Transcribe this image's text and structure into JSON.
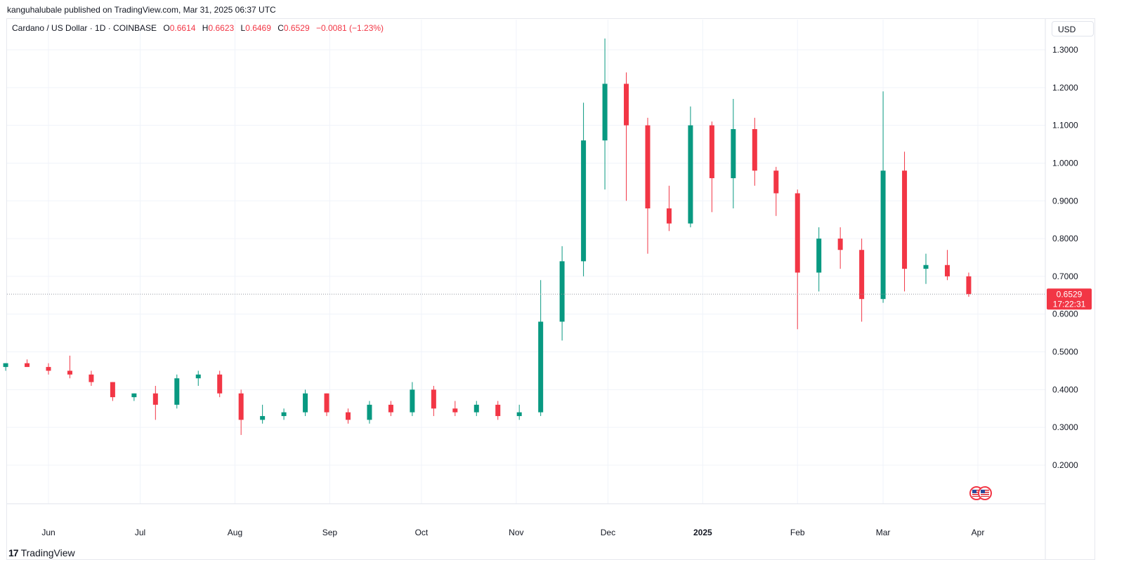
{
  "header": {
    "published": "kanguhalubale published on TradingView.com, Mar 31, 2025 06:37 UTC"
  },
  "legend": {
    "symbol": "Cardano / US Dollar · 1D · COINBASE",
    "o_label": "O",
    "o_value": "0.6614",
    "h_label": "H",
    "h_value": "0.6623",
    "l_label": "L",
    "l_value": "0.6469",
    "c_label": "C",
    "c_value": "0.6529",
    "change": "−0.0081 (−1.23%)"
  },
  "currency_button": "USD",
  "footer": {
    "brand": "TradingView",
    "logo": "tradingview-logo-icon"
  },
  "price_tag": {
    "price": "0.6529",
    "countdown": "17:22:31",
    "color": "#f23645"
  },
  "colors": {
    "up": "#089981",
    "down": "#f23645",
    "grid": "#f0f3fa",
    "axis_text": "#131722"
  },
  "event_marker": {
    "icon": "us-flag-icon",
    "count": 2
  },
  "chart_data": {
    "type": "candlestick",
    "title": "Cardano / US Dollar · 1D · COINBASE",
    "xlabel": "",
    "ylabel": "",
    "ylim": [
      0.1,
      1.33
    ],
    "y_ticks": [
      "1.3000",
      "1.2000",
      "1.1000",
      "1.0000",
      "0.9000",
      "0.8000",
      "0.7000",
      "0.6000",
      "0.5000",
      "0.4000",
      "0.3000",
      "0.2000"
    ],
    "x_ticks": [
      {
        "label": "Jun",
        "date": "2024-06-01"
      },
      {
        "label": "Jul",
        "date": "2024-07-01"
      },
      {
        "label": "Aug",
        "date": "2024-08-01"
      },
      {
        "label": "Sep",
        "date": "2024-09-01"
      },
      {
        "label": "Oct",
        "date": "2024-10-01"
      },
      {
        "label": "Nov",
        "date": "2024-11-01"
      },
      {
        "label": "Dec",
        "date": "2024-12-01"
      },
      {
        "label": "2025",
        "date": "2025-01-01",
        "bold": true
      },
      {
        "label": "Feb",
        "date": "2025-02-01"
      },
      {
        "label": "Mar",
        "date": "2025-03-01"
      },
      {
        "label": "Apr",
        "date": "2025-04-01"
      }
    ],
    "grid": true,
    "last_price": 0.6529,
    "candles": [
      {
        "date": "2024-05-18",
        "o": 0.46,
        "h": 0.47,
        "l": 0.45,
        "c": 0.47
      },
      {
        "date": "2024-05-25",
        "o": 0.47,
        "h": 0.48,
        "l": 0.46,
        "c": 0.46
      },
      {
        "date": "2024-06-01",
        "o": 0.46,
        "h": 0.47,
        "l": 0.44,
        "c": 0.45
      },
      {
        "date": "2024-06-08",
        "o": 0.45,
        "h": 0.49,
        "l": 0.43,
        "c": 0.44
      },
      {
        "date": "2024-06-15",
        "o": 0.44,
        "h": 0.45,
        "l": 0.41,
        "c": 0.42
      },
      {
        "date": "2024-06-22",
        "o": 0.42,
        "h": 0.42,
        "l": 0.37,
        "c": 0.38
      },
      {
        "date": "2024-06-29",
        "o": 0.38,
        "h": 0.39,
        "l": 0.37,
        "c": 0.39
      },
      {
        "date": "2024-07-06",
        "o": 0.39,
        "h": 0.41,
        "l": 0.32,
        "c": 0.36
      },
      {
        "date": "2024-07-13",
        "o": 0.36,
        "h": 0.44,
        "l": 0.35,
        "c": 0.43
      },
      {
        "date": "2024-07-20",
        "o": 0.43,
        "h": 0.45,
        "l": 0.41,
        "c": 0.44
      },
      {
        "date": "2024-07-27",
        "o": 0.44,
        "h": 0.45,
        "l": 0.38,
        "c": 0.39
      },
      {
        "date": "2024-08-03",
        "o": 0.39,
        "h": 0.4,
        "l": 0.28,
        "c": 0.32
      },
      {
        "date": "2024-08-10",
        "o": 0.32,
        "h": 0.36,
        "l": 0.31,
        "c": 0.33
      },
      {
        "date": "2024-08-17",
        "o": 0.33,
        "h": 0.35,
        "l": 0.32,
        "c": 0.34
      },
      {
        "date": "2024-08-24",
        "o": 0.34,
        "h": 0.4,
        "l": 0.33,
        "c": 0.39
      },
      {
        "date": "2024-08-31",
        "o": 0.39,
        "h": 0.39,
        "l": 0.33,
        "c": 0.34
      },
      {
        "date": "2024-09-07",
        "o": 0.34,
        "h": 0.35,
        "l": 0.31,
        "c": 0.32
      },
      {
        "date": "2024-09-14",
        "o": 0.32,
        "h": 0.37,
        "l": 0.31,
        "c": 0.36
      },
      {
        "date": "2024-09-21",
        "o": 0.36,
        "h": 0.37,
        "l": 0.33,
        "c": 0.34
      },
      {
        "date": "2024-09-28",
        "o": 0.34,
        "h": 0.42,
        "l": 0.33,
        "c": 0.4
      },
      {
        "date": "2024-10-05",
        "o": 0.4,
        "h": 0.41,
        "l": 0.33,
        "c": 0.35
      },
      {
        "date": "2024-10-12",
        "o": 0.35,
        "h": 0.37,
        "l": 0.33,
        "c": 0.34
      },
      {
        "date": "2024-10-19",
        "o": 0.34,
        "h": 0.37,
        "l": 0.33,
        "c": 0.36
      },
      {
        "date": "2024-10-26",
        "o": 0.36,
        "h": 0.37,
        "l": 0.32,
        "c": 0.33
      },
      {
        "date": "2024-11-02",
        "o": 0.33,
        "h": 0.36,
        "l": 0.32,
        "c": 0.34
      },
      {
        "date": "2024-11-09",
        "o": 0.34,
        "h": 0.69,
        "l": 0.33,
        "c": 0.58
      },
      {
        "date": "2024-11-16",
        "o": 0.58,
        "h": 0.78,
        "l": 0.53,
        "c": 0.74
      },
      {
        "date": "2024-11-23",
        "o": 0.74,
        "h": 1.16,
        "l": 0.7,
        "c": 1.06
      },
      {
        "date": "2024-11-30",
        "o": 1.06,
        "h": 1.33,
        "l": 0.93,
        "c": 1.21
      },
      {
        "date": "2024-12-07",
        "o": 1.21,
        "h": 1.24,
        "l": 0.9,
        "c": 1.1
      },
      {
        "date": "2024-12-14",
        "o": 1.1,
        "h": 1.12,
        "l": 0.76,
        "c": 0.88
      },
      {
        "date": "2024-12-21",
        "o": 0.88,
        "h": 0.94,
        "l": 0.82,
        "c": 0.84
      },
      {
        "date": "2024-12-28",
        "o": 0.84,
        "h": 1.15,
        "l": 0.83,
        "c": 1.1
      },
      {
        "date": "2025-01-04",
        "o": 1.1,
        "h": 1.11,
        "l": 0.87,
        "c": 0.96
      },
      {
        "date": "2025-01-11",
        "o": 0.96,
        "h": 1.17,
        "l": 0.88,
        "c": 1.09
      },
      {
        "date": "2025-01-18",
        "o": 1.09,
        "h": 1.12,
        "l": 0.94,
        "c": 0.98
      },
      {
        "date": "2025-01-25",
        "o": 0.98,
        "h": 0.99,
        "l": 0.86,
        "c": 0.92
      },
      {
        "date": "2025-02-01",
        "o": 0.92,
        "h": 0.93,
        "l": 0.56,
        "c": 0.71
      },
      {
        "date": "2025-02-08",
        "o": 0.71,
        "h": 0.83,
        "l": 0.66,
        "c": 0.8
      },
      {
        "date": "2025-02-15",
        "o": 0.8,
        "h": 0.83,
        "l": 0.72,
        "c": 0.77
      },
      {
        "date": "2025-02-22",
        "o": 0.77,
        "h": 0.8,
        "l": 0.58,
        "c": 0.64
      },
      {
        "date": "2025-03-01",
        "o": 0.64,
        "h": 1.19,
        "l": 0.63,
        "c": 0.98
      },
      {
        "date": "2025-03-08",
        "o": 0.98,
        "h": 1.03,
        "l": 0.66,
        "c": 0.72
      },
      {
        "date": "2025-03-15",
        "o": 0.72,
        "h": 0.76,
        "l": 0.68,
        "c": 0.73
      },
      {
        "date": "2025-03-22",
        "o": 0.73,
        "h": 0.77,
        "l": 0.69,
        "c": 0.7
      },
      {
        "date": "2025-03-29",
        "o": 0.7,
        "h": 0.71,
        "l": 0.646,
        "c": 0.6529
      }
    ]
  }
}
